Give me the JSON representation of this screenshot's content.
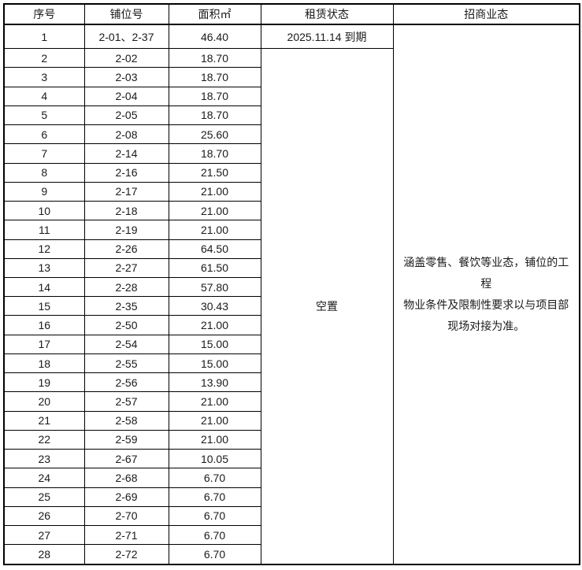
{
  "colors": {
    "background": "#ffffff",
    "border": "#000000",
    "text": "#1a1a1a"
  },
  "table": {
    "headers": [
      "序号",
      "铺位号",
      "面积㎡",
      "租赁状态",
      "招商业态"
    ],
    "row1_status": "2025.11.14 到期",
    "vacant_status": "空置",
    "business_note": "涵盖零售、餐饮等业态，铺位的工程物业条件及限制性要求以与项目部现场对接为准。",
    "business_note_lines": [
      "涵盖零售、餐饮等业态，铺位的工程",
      "物业条件及限制性要求以与项目部",
      "现场对接为准。"
    ],
    "rows": [
      {
        "no": "1",
        "unit": "2-01、2-37",
        "area": "46.40"
      },
      {
        "no": "2",
        "unit": "2-02",
        "area": "18.70"
      },
      {
        "no": "3",
        "unit": "2-03",
        "area": "18.70"
      },
      {
        "no": "4",
        "unit": "2-04",
        "area": "18.70"
      },
      {
        "no": "5",
        "unit": "2-05",
        "area": "18.70"
      },
      {
        "no": "6",
        "unit": "2-08",
        "area": "25.60"
      },
      {
        "no": "7",
        "unit": "2-14",
        "area": "18.70"
      },
      {
        "no": "8",
        "unit": "2-16",
        "area": "21.50"
      },
      {
        "no": "9",
        "unit": "2-17",
        "area": "21.00"
      },
      {
        "no": "10",
        "unit": "2-18",
        "area": "21.00"
      },
      {
        "no": "11",
        "unit": "2-19",
        "area": "21.00"
      },
      {
        "no": "12",
        "unit": "2-26",
        "area": "64.50"
      },
      {
        "no": "13",
        "unit": "2-27",
        "area": "61.50"
      },
      {
        "no": "14",
        "unit": "2-28",
        "area": "57.80"
      },
      {
        "no": "15",
        "unit": "2-35",
        "area": "30.43"
      },
      {
        "no": "16",
        "unit": "2-50",
        "area": "21.00"
      },
      {
        "no": "17",
        "unit": "2-54",
        "area": "15.00"
      },
      {
        "no": "18",
        "unit": "2-55",
        "area": "15.00"
      },
      {
        "no": "19",
        "unit": "2-56",
        "area": "13.90"
      },
      {
        "no": "20",
        "unit": "2-57",
        "area": "21.00"
      },
      {
        "no": "21",
        "unit": "2-58",
        "area": "21.00"
      },
      {
        "no": "22",
        "unit": "2-59",
        "area": "21.00"
      },
      {
        "no": "23",
        "unit": "2-67",
        "area": "10.05"
      },
      {
        "no": "24",
        "unit": "2-68",
        "area": "6.70"
      },
      {
        "no": "25",
        "unit": "2-69",
        "area": "6.70"
      },
      {
        "no": "26",
        "unit": "2-70",
        "area": "6.70"
      },
      {
        "no": "27",
        "unit": "2-71",
        "area": "6.70"
      },
      {
        "no": "28",
        "unit": "2-72",
        "area": "6.70"
      }
    ]
  }
}
